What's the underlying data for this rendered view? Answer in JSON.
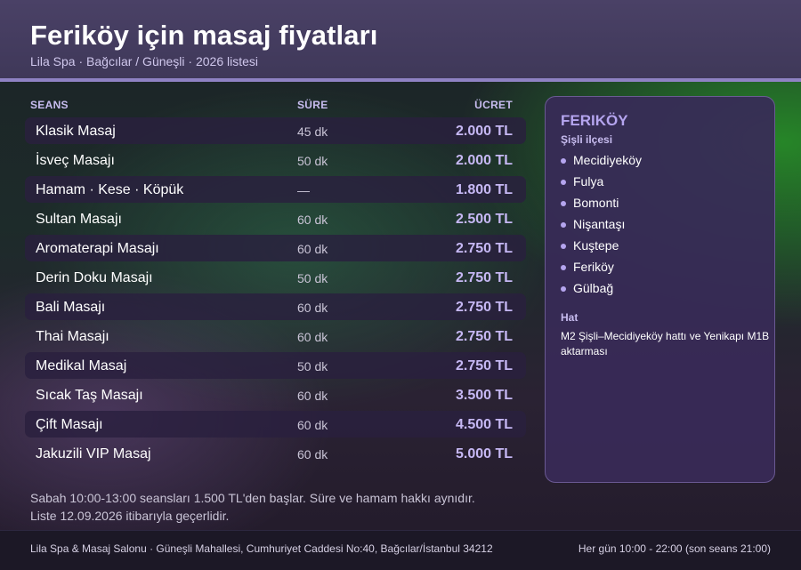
{
  "header": {
    "title": "Feriköy için masaj fiyatları",
    "subtitle": "Lila Spa · Bağcılar / Güneşli · 2026 listesi"
  },
  "table": {
    "columns": {
      "seans": "SEANS",
      "sure": "SÜRE",
      "ucret": "ÜCRET"
    },
    "rows": [
      {
        "name": "Klasik Masaj",
        "duration": "45 dk",
        "price": "2.000 TL"
      },
      {
        "name": "İsveç Masajı",
        "duration": "50 dk",
        "price": "2.000 TL"
      },
      {
        "name": "Hamam · Kese · Köpük",
        "duration": "—",
        "price": "1.800 TL"
      },
      {
        "name": "Sultan Masajı",
        "duration": "60 dk",
        "price": "2.500 TL"
      },
      {
        "name": "Aromaterapi Masajı",
        "duration": "60 dk",
        "price": "2.750 TL"
      },
      {
        "name": "Derin Doku Masajı",
        "duration": "50 dk",
        "price": "2.750 TL"
      },
      {
        "name": "Bali Masajı",
        "duration": "60 dk",
        "price": "2.750 TL"
      },
      {
        "name": "Thai Masajı",
        "duration": "60 dk",
        "price": "2.750 TL"
      },
      {
        "name": "Medikal Masaj",
        "duration": "50 dk",
        "price": "2.750 TL"
      },
      {
        "name": "Sıcak Taş Masajı",
        "duration": "60 dk",
        "price": "3.500 TL"
      },
      {
        "name": "Çift Masajı",
        "duration": "60 dk",
        "price": "4.500 TL"
      },
      {
        "name": "Jakuzili VIP Masaj",
        "duration": "60 dk",
        "price": "5.000 TL"
      }
    ]
  },
  "notes": {
    "line1": "Sabah 10:00-13:00 seansları 1.500 TL'den başlar. Süre ve hamam hakkı aynıdır.",
    "line2": "Liste 12.09.2026 itibarıyla geçerlidir."
  },
  "panel": {
    "title": "FERIKÖY",
    "subtitle": "Şişli ilçesi",
    "neighborhoods": [
      "Mecidiyeköy",
      "Fulya",
      "Bomonti",
      "Nişantaşı",
      "Kuştepe",
      "Feriköy",
      "Gülbağ"
    ],
    "transit_title": "Hat",
    "transit_text": "M2 Şişli–Mecidiyeköy hattı ve Yenikapı M1B aktarması"
  },
  "footer": {
    "address": "Lila Spa & Masaj Salonu · Güneşli Mahallesi, Cumhuriyet Caddesi No:40, Bağcılar/İstanbul 34212",
    "hours": "Her gün 10:00 - 22:00 (son seans 21:00)"
  },
  "colors": {
    "accent": "#8f82c4",
    "price": "#c6b8f4",
    "panel_title": "#b5a5ef",
    "header_bg": "#4a4166"
  }
}
